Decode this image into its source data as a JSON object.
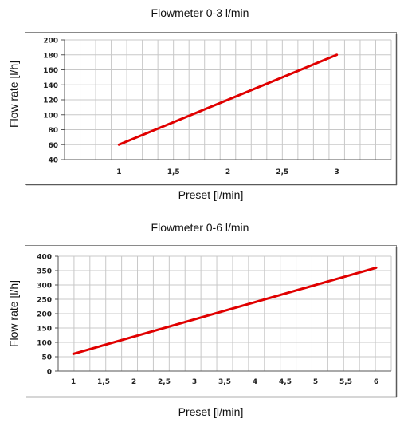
{
  "chart_data": [
    {
      "type": "line",
      "title": "Flowmeter 0-3 l/min",
      "xlabel": "Preset [l/min]",
      "ylabel": "Flow rate [l/h]",
      "x_ticks": [
        "1",
        "1,5",
        "2",
        "2,5",
        "3"
      ],
      "y_ticks": [
        "40",
        "60",
        "80",
        "100",
        "120",
        "140",
        "160",
        "180",
        "200"
      ],
      "xlim": [
        0.5,
        3.5
      ],
      "ylim": [
        40,
        200
      ],
      "grid": true,
      "line_color": "#e00000",
      "series": [
        {
          "x": [
            1,
            3
          ],
          "y": [
            60,
            180
          ]
        }
      ]
    },
    {
      "type": "line",
      "title": "Flowmeter 0-6 l/min",
      "xlabel": "Preset [l/min]",
      "ylabel": "Flow rate [l/h]",
      "x_ticks": [
        "1",
        "1,5",
        "2",
        "2,5",
        "3",
        "3,5",
        "4",
        "4,5",
        "5",
        "5,5",
        "6"
      ],
      "y_ticks": [
        "0",
        "50",
        "100",
        "150",
        "200",
        "250",
        "300",
        "350",
        "400"
      ],
      "xlim": [
        0.75,
        6.25
      ],
      "ylim": [
        0,
        400
      ],
      "grid": true,
      "line_color": "#e00000",
      "series": [
        {
          "x": [
            1,
            6
          ],
          "y": [
            60,
            360
          ]
        }
      ]
    }
  ]
}
